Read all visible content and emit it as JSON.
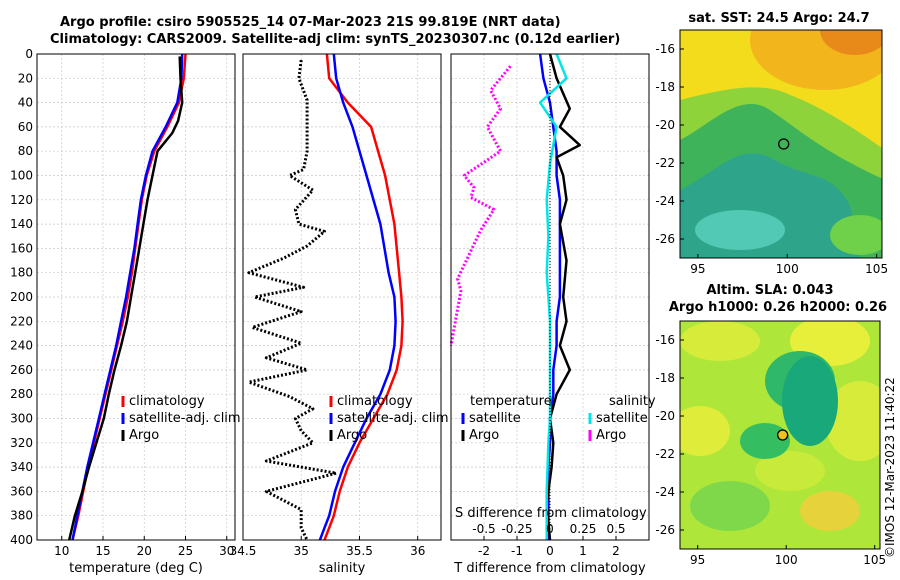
{
  "header": {
    "title_line1": "Argo profile: csiro 5905525_14 07-Mar-2023 21S 99.819E (NRT data)",
    "title_line2": "Climatology: CARS2009. Satellite-adj clim: synTS_20230307.nc (0.12d earlier)"
  },
  "colors": {
    "climatology": "#ff0000",
    "satellite_clim": "#0000ff",
    "argo": "#000000",
    "sat_salinity": "#00e5e5",
    "argo_salinity": "#ff00ff",
    "grid": "#c8c8c8"
  },
  "chart_data": [
    {
      "type": "line",
      "name": "temperature-profile",
      "xlabel": "temperature (deg C)",
      "ylabel": "",
      "xlim": [
        7,
        31
      ],
      "ylim": [
        0,
        400
      ],
      "xticks": [
        10,
        15,
        20,
        25,
        30
      ],
      "yticks": [
        0,
        20,
        40,
        60,
        80,
        100,
        120,
        140,
        160,
        180,
        200,
        220,
        240,
        260,
        280,
        300,
        320,
        340,
        360,
        380,
        400
      ],
      "grid": true,
      "legend": [
        "climatology",
        "satellite-adj. clim",
        "Argo"
      ],
      "series": [
        {
          "name": "climatology",
          "color": "#ff0000",
          "x": [
            25.0,
            24.8,
            24.2,
            22.8,
            21.2,
            20.3,
            19.7,
            19.3,
            18.9,
            18.5,
            18.0,
            17.4,
            16.7,
            16.0,
            15.3,
            14.6,
            13.9,
            13.2,
            12.6,
            12.0,
            11.3
          ],
          "y": [
            0,
            20,
            40,
            60,
            80,
            100,
            120,
            140,
            160,
            180,
            200,
            220,
            240,
            260,
            280,
            300,
            320,
            340,
            360,
            380,
            400
          ]
        },
        {
          "name": "satellite-adj. clim",
          "color": "#0000ff",
          "x": [
            24.6,
            24.5,
            24.0,
            22.6,
            21.0,
            20.2,
            19.6,
            19.2,
            18.8,
            18.3,
            17.8,
            17.2,
            16.6,
            15.9,
            15.2,
            14.5,
            13.8,
            13.1,
            12.5,
            11.9,
            11.3
          ],
          "y": [
            0,
            20,
            40,
            60,
            80,
            100,
            120,
            140,
            160,
            180,
            200,
            220,
            240,
            260,
            280,
            300,
            320,
            340,
            360,
            380,
            400
          ]
        },
        {
          "name": "Argo",
          "color": "#000000",
          "x": [
            24.3,
            24.4,
            24.6,
            24.1,
            23.4,
            21.6,
            21.0,
            20.4,
            19.9,
            19.4,
            18.9,
            18.4,
            17.9,
            17.2,
            16.4,
            15.7,
            15.1,
            14.2,
            13.3,
            12.5,
            11.6,
            10.9
          ],
          "y": [
            2,
            20,
            40,
            55,
            65,
            80,
            100,
            120,
            140,
            160,
            180,
            200,
            220,
            240,
            260,
            280,
            300,
            320,
            340,
            360,
            380,
            400
          ]
        }
      ]
    },
    {
      "type": "line",
      "name": "salinity-profile",
      "xlabel": "salinity",
      "xlim": [
        34.5,
        36.2
      ],
      "ylim": [
        0,
        400
      ],
      "xticks": [
        34.5,
        35,
        35.5,
        36
      ],
      "xticklabels": [
        "34.5",
        "35",
        "35.5",
        "36"
      ],
      "grid": true,
      "legend": [
        "climatology",
        "satellite-adj. clim",
        "Argo"
      ],
      "series": [
        {
          "name": "climatology",
          "color": "#ff0000",
          "x": [
            35.22,
            35.24,
            35.4,
            35.6,
            35.72,
            35.8,
            35.84,
            35.86,
            35.87,
            35.86,
            35.82,
            35.74,
            35.62,
            35.5,
            35.4,
            35.33,
            35.28,
            35.24,
            35.2
          ],
          "y": [
            0,
            20,
            40,
            60,
            100,
            140,
            180,
            200,
            220,
            240,
            260,
            280,
            300,
            320,
            340,
            360,
            380,
            390,
            400
          ]
        },
        {
          "name": "satellite-adj. clim",
          "color": "#0000ff",
          "x": [
            35.28,
            35.3,
            35.36,
            35.44,
            35.56,
            35.68,
            35.75,
            35.8,
            35.81,
            35.8,
            35.76,
            35.68,
            35.56,
            35.46,
            35.36,
            35.29,
            35.24,
            35.2,
            35.16
          ],
          "y": [
            0,
            20,
            40,
            60,
            100,
            140,
            180,
            200,
            220,
            240,
            260,
            280,
            300,
            320,
            340,
            360,
            380,
            390,
            400
          ]
        },
        {
          "name": "Argo",
          "color": "#000000",
          "x": [
            35.0,
            34.98,
            35.05,
            35.05,
            35.05,
            35.02,
            34.9,
            35.1,
            34.95,
            34.98,
            35.2,
            35.05,
            34.85,
            34.55,
            35.02,
            34.6,
            35.0,
            34.58,
            35.0,
            34.7,
            35.05,
            34.55,
            34.9,
            35.1,
            34.95,
            35.0,
            35.1,
            34.7,
            35.3,
            34.7,
            35.0,
            35.0,
            35.05
          ],
          "y": [
            5,
            20,
            38,
            60,
            80,
            95,
            100,
            112,
            128,
            140,
            146,
            158,
            168,
            180,
            192,
            200,
            212,
            225,
            238,
            250,
            260,
            270,
            282,
            292,
            300,
            310,
            320,
            335,
            345,
            360,
            375,
            390,
            400
          ]
        }
      ]
    },
    {
      "type": "line",
      "name": "difference-profile",
      "xlabel": "T difference from climatology",
      "top_axis_label": "S difference from climatology",
      "xlim": [
        -3,
        3
      ],
      "ylim": [
        0,
        400
      ],
      "xticks": [
        -2,
        -1,
        0,
        1,
        2
      ],
      "s_xticks": [
        -0.5,
        -0.25,
        0,
        0.25,
        0.5
      ],
      "s_xticklabels": [
        "-0.5",
        "-0.25",
        "0",
        "0.25",
        "0.5"
      ],
      "grid": true,
      "legend_temperature_title": "temperature",
      "legend_salinity_title": "salinity",
      "legend_temperature": [
        "satellite",
        "Argo"
      ],
      "legend_salinity": [
        "satellite",
        "Argo"
      ],
      "series": [
        {
          "name": "T satellite",
          "color": "#0000ff",
          "x": [
            -0.3,
            -0.2,
            0.0,
            0.1,
            0.2,
            0.2,
            0.3,
            0.3,
            0.3,
            0.3,
            0.3,
            0.2,
            0.2,
            0.1,
            0.1,
            0.0,
            0.0,
            -0.05,
            -0.05,
            -0.05
          ],
          "y": [
            0,
            20,
            40,
            60,
            80,
            100,
            120,
            140,
            160,
            180,
            200,
            220,
            240,
            260,
            280,
            300,
            320,
            340,
            360,
            400
          ]
        },
        {
          "name": "T Argo",
          "color": "#000000",
          "x": [
            0.0,
            0.2,
            0.6,
            0.3,
            0.9,
            0.2,
            0.4,
            0.5,
            0.3,
            0.5,
            0.4,
            0.5,
            0.3,
            0.6,
            0.2,
            0.0,
            0.1,
            0.05,
            -0.1,
            0.0
          ],
          "y": [
            0,
            20,
            45,
            60,
            75,
            85,
            100,
            120,
            140,
            170,
            200,
            220,
            240,
            260,
            280,
            300,
            320,
            340,
            370,
            400
          ]
        },
        {
          "name": "S satellite",
          "color": "#00e5e5",
          "x": [
            0.2,
            0.5,
            -0.3,
            0.2,
            0.0,
            -0.1,
            -0.05,
            -0.1,
            -0.05,
            0.0,
            0.0,
            0.0,
            0.0,
            0.0,
            -0.05,
            -0.1,
            -0.1
          ],
          "y": [
            0,
            20,
            40,
            60,
            90,
            120,
            150,
            180,
            200,
            220,
            240,
            260,
            280,
            300,
            320,
            360,
            400
          ]
        },
        {
          "name": "S Argo",
          "color": "#ff00ff",
          "x": [
            -1.2,
            -1.5,
            -1.8,
            -1.5,
            -1.9,
            -1.5,
            -2.6,
            -2.3,
            -2.4,
            -1.7,
            -2.1,
            -2.8,
            -2.7,
            -3.0
          ],
          "y": [
            10,
            20,
            30,
            45,
            60,
            80,
            100,
            110,
            118,
            128,
            145,
            185,
            195,
            240
          ]
        }
      ]
    },
    {
      "type": "heatmap",
      "name": "sst-map",
      "title": "sat. SST: 24.5  Argo: 24.7",
      "xticks": [
        95,
        100,
        105
      ],
      "yticks": [
        -16,
        -18,
        -20,
        -22,
        -24,
        -26
      ],
      "xlim": [
        94,
        105.3
      ],
      "ylim": [
        -27,
        -15
      ],
      "marker": {
        "lon": 99.8,
        "lat": -21.0
      }
    },
    {
      "type": "heatmap",
      "name": "sla-map",
      "title_line1": "Altim. SLA: 0.043",
      "title_line2": "Argo h1000: 0.26 h2000: 0.26",
      "xticks": [
        95,
        100,
        105
      ],
      "yticks": [
        -16,
        -18,
        -20,
        -22,
        -24,
        -26
      ],
      "xlim": [
        94,
        105.3
      ],
      "ylim": [
        -27,
        -15
      ],
      "marker": {
        "lon": 99.8,
        "lat": -21.0
      }
    }
  ],
  "footer": {
    "side_credit": "©IMOS 12-Mar-2023 11:40:22"
  }
}
